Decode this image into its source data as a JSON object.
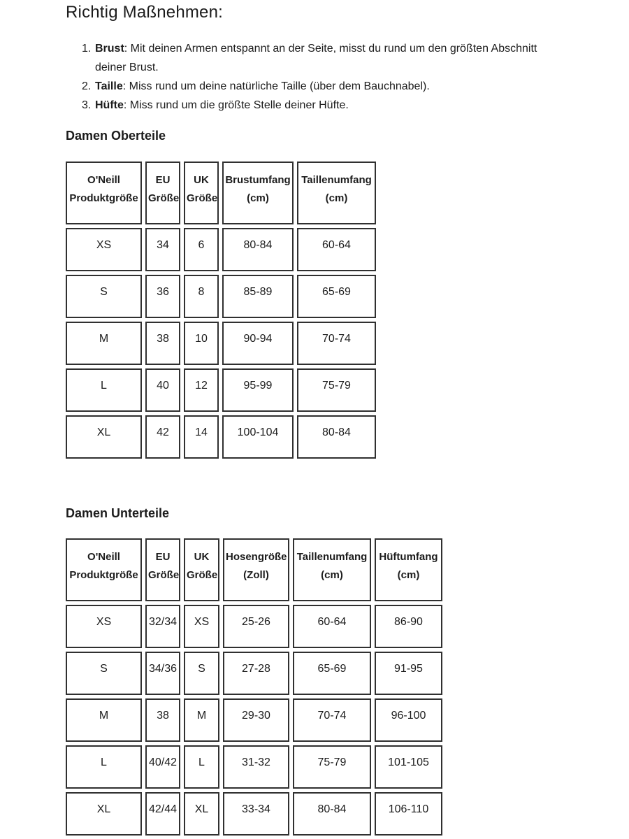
{
  "page": {
    "title": "Richtig Maßnehmen:",
    "instructions": [
      {
        "number": "1.",
        "term": "Brust",
        "text": ": Mit deinen Armen entspannt an der Seite, misst du rund um den größten Abschnitt deiner Brust."
      },
      {
        "number": "2.",
        "term": "Taille",
        "text": ": Miss rund um deine natürliche Taille (über dem Bauchnabel)."
      },
      {
        "number": "3.",
        "term": "Hüfte",
        "text": ": Miss rund um die größte Stelle deiner Hüfte."
      }
    ]
  },
  "tables": [
    {
      "heading": "Damen Oberteile",
      "columns": [
        "O'Neill Produktgröße",
        "EU Größe",
        "UK Größe",
        "Brustumfang (cm)",
        "Taillenumfang (cm)"
      ],
      "rows": [
        [
          "XS",
          "34",
          "6",
          "80-84",
          "60-64"
        ],
        [
          "S",
          "36",
          "8",
          "85-89",
          "65-69"
        ],
        [
          "M",
          "38",
          "10",
          "90-94",
          "70-74"
        ],
        [
          "L",
          "40",
          "12",
          "95-99",
          "75-79"
        ],
        [
          "XL",
          "42",
          "14",
          "100-104",
          "80-84"
        ]
      ]
    },
    {
      "heading": "Damen Unterteile",
      "columns": [
        "O'Neill Produktgröße",
        "EU Größe",
        "UK Größe",
        "Hosengröße (Zoll)",
        "Taillenumfang (cm)",
        "Hüftumfang (cm)"
      ],
      "rows": [
        [
          "XS",
          "32/34",
          "XS",
          "25-26",
          "60-64",
          "86-90"
        ],
        [
          "S",
          "34/36",
          "S",
          "27-28",
          "65-69",
          "91-95"
        ],
        [
          "M",
          "38",
          "M",
          "29-30",
          "70-74",
          "96-100"
        ],
        [
          "L",
          "40/42",
          "L",
          "31-32",
          "75-79",
          "101-105"
        ],
        [
          "XL",
          "42/44",
          "XL",
          "33-34",
          "80-84",
          "106-110"
        ]
      ]
    }
  ],
  "colors": {
    "text": "#1c1c1c",
    "table_border": "#303030",
    "background": "#ffffff"
  }
}
